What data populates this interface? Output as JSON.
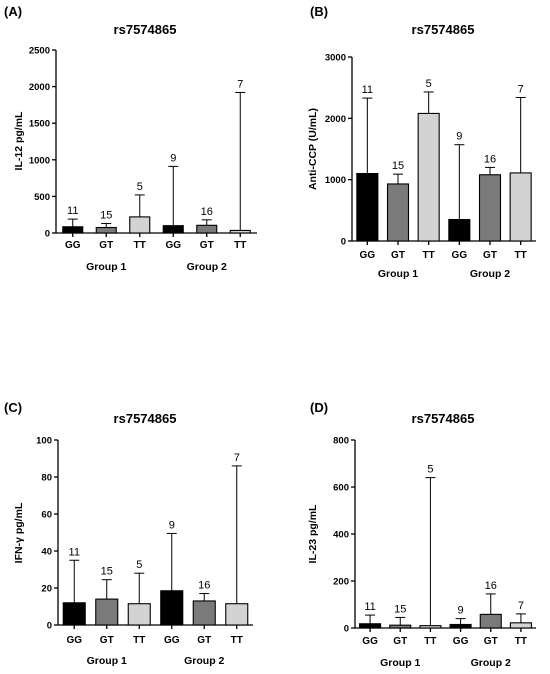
{
  "chart_data": [
    {
      "panel": "(A)",
      "type": "bar",
      "title": "rs7574865",
      "ylabel": "IL-12 pg/mL",
      "xlabel": "",
      "ylim": [
        0,
        2500
      ],
      "yticks": [
        0,
        500,
        1000,
        1500,
        2000,
        2500
      ],
      "categories": [
        "GG",
        "GT",
        "TT",
        "GG",
        "GT",
        "TT"
      ],
      "groups": [
        {
          "label": "Group 1",
          "span": [
            0,
            2
          ]
        },
        {
          "label": "Group 2",
          "span": [
            3,
            5
          ]
        }
      ],
      "values": [
        85,
        75,
        220,
        100,
        105,
        35
      ],
      "errors": [
        190,
        130,
        520,
        910,
        180,
        1920
      ],
      "n_labels": [
        "11",
        "15",
        "5",
        "9",
        "16",
        "7"
      ],
      "colors": [
        "#000000",
        "#7a7a7a",
        "#d3d3d3",
        "#000000",
        "#7a7a7a",
        "#d3d3d3"
      ]
    },
    {
      "panel": "(B)",
      "type": "bar",
      "title": "rs7574865",
      "ylabel": "Anti-CCP (U/mL)",
      "xlabel": "",
      "ylim": [
        0,
        3000
      ],
      "yticks": [
        0,
        1000,
        2000,
        3000
      ],
      "categories": [
        "GG",
        "GT",
        "TT",
        "GG",
        "GT",
        "TT"
      ],
      "groups": [
        {
          "label": "Group 1",
          "span": [
            0,
            2
          ]
        },
        {
          "label": "Group 2",
          "span": [
            3,
            5
          ]
        }
      ],
      "values": [
        1100,
        930,
        2080,
        350,
        1080,
        1110
      ],
      "errors": [
        2330,
        1090,
        2430,
        1570,
        1200,
        2340
      ],
      "n_labels": [
        "11",
        "15",
        "5",
        "9",
        "16",
        "7"
      ],
      "colors": [
        "#000000",
        "#7a7a7a",
        "#d3d3d3",
        "#000000",
        "#7a7a7a",
        "#d3d3d3"
      ]
    },
    {
      "panel": "(C)",
      "type": "bar",
      "title": "rs7574865",
      "ylabel": "IFN-γ pg/mL",
      "xlabel": "",
      "ylim": [
        0,
        100
      ],
      "yticks": [
        0,
        20,
        40,
        60,
        80,
        100
      ],
      "categories": [
        "GG",
        "GT",
        "TT",
        "GG",
        "GT",
        "TT"
      ],
      "groups": [
        {
          "label": "Group 1",
          "span": [
            0,
            2
          ]
        },
        {
          "label": "Group 2",
          "span": [
            3,
            5
          ]
        }
      ],
      "values": [
        12,
        14,
        11.5,
        18.5,
        13,
        11.5
      ],
      "errors": [
        35,
        24.5,
        28,
        49.5,
        17,
        86
      ],
      "n_labels": [
        "11",
        "15",
        "5",
        "9",
        "16",
        "7"
      ],
      "colors": [
        "#000000",
        "#7a7a7a",
        "#d3d3d3",
        "#000000",
        "#7a7a7a",
        "#d3d3d3"
      ]
    },
    {
      "panel": "(D)",
      "type": "bar",
      "title": "rs7574865",
      "ylabel": "IL-23 pg/mL",
      "xlabel": "",
      "ylim": [
        0,
        800
      ],
      "yticks": [
        0,
        200,
        400,
        600,
        800
      ],
      "categories": [
        "GG",
        "GT",
        "TT",
        "GG",
        "GT",
        "TT"
      ],
      "groups": [
        {
          "label": "Group 1",
          "span": [
            0,
            2
          ]
        },
        {
          "label": "Group 2",
          "span": [
            3,
            5
          ]
        }
      ],
      "values": [
        18,
        12,
        10,
        15,
        58,
        22
      ],
      "errors": [
        55,
        45,
        640,
        40,
        145,
        60
      ],
      "n_labels": [
        "11",
        "15",
        "5",
        "9",
        "16",
        "7"
      ],
      "colors": [
        "#000000",
        "#7a7a7a",
        "#d3d3d3",
        "#000000",
        "#7a7a7a",
        "#d3d3d3"
      ]
    }
  ]
}
